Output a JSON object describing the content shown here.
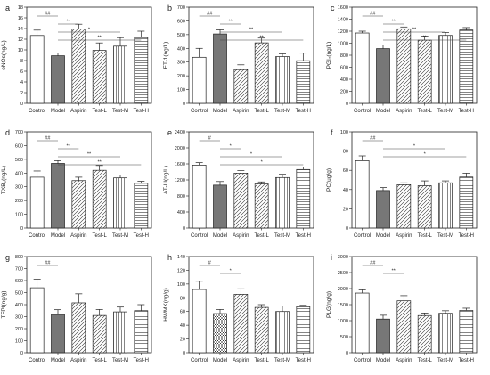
{
  "categories": [
    "Control",
    "Model",
    "Aspirin",
    "Test-L",
    "Test-M",
    "Test-H"
  ],
  "chart_data": [
    {
      "type": "bar",
      "panel_label": "a",
      "ylabel": "eNOs(ng/L)",
      "ylim": [
        0,
        18
      ],
      "yticks": [
        0,
        2,
        4,
        6,
        8,
        10,
        12,
        14,
        16,
        18
      ],
      "values": [
        12.7,
        8.9,
        13.9,
        9.9,
        10.7,
        12.3
      ],
      "errors": [
        1.0,
        0.5,
        0.9,
        1.4,
        1.6,
        1.2
      ],
      "sig": [
        {
          "from": 0,
          "to": 1,
          "label": "##"
        },
        {
          "from": 1,
          "to": 2,
          "label": "**"
        },
        {
          "from": 1,
          "to": 4,
          "label": "*"
        },
        {
          "from": 1,
          "to": 5,
          "label": "**"
        }
      ]
    },
    {
      "type": "bar",
      "panel_label": "b",
      "ylabel": "ET-1(ng/L)",
      "ylim": [
        0,
        700
      ],
      "yticks": [
        0,
        100,
        200,
        300,
        400,
        500,
        600,
        700
      ],
      "values": [
        335,
        505,
        245,
        440,
        340,
        310
      ],
      "errors": [
        65,
        30,
        35,
        35,
        20,
        55
      ],
      "sig": [
        {
          "from": 0,
          "to": 1,
          "label": "##"
        },
        {
          "from": 1,
          "to": 2,
          "label": "**"
        },
        {
          "from": 1,
          "to": 4,
          "label": "**"
        },
        {
          "from": 1,
          "to": 5,
          "label": "**"
        }
      ]
    },
    {
      "type": "bar",
      "panel_label": "c",
      "ylabel": "PGI₂(ng/L)",
      "ylim": [
        0,
        1600
      ],
      "yticks": [
        0,
        200,
        400,
        600,
        800,
        1000,
        1200,
        1400,
        1600
      ],
      "values": [
        1170,
        910,
        1240,
        1050,
        1130,
        1220
      ],
      "errors": [
        30,
        60,
        30,
        70,
        50,
        40
      ],
      "sig": [
        {
          "from": 0,
          "to": 1,
          "label": "##"
        },
        {
          "from": 1,
          "to": 2,
          "label": "**"
        },
        {
          "from": 1,
          "to": 4,
          "label": "**"
        },
        {
          "from": 1,
          "to": 5,
          "label": "**"
        }
      ]
    },
    {
      "type": "bar",
      "panel_label": "d",
      "ylabel": "TXB₂(ng/L)",
      "ylim": [
        0,
        700
      ],
      "yticks": [
        0,
        100,
        200,
        300,
        400,
        500,
        600,
        700
      ],
      "values": [
        370,
        470,
        345,
        420,
        365,
        325
      ],
      "errors": [
        45,
        20,
        25,
        35,
        20,
        15
      ],
      "sig": [
        {
          "from": 0,
          "to": 1,
          "label": "##"
        },
        {
          "from": 1,
          "to": 2,
          "label": "**"
        },
        {
          "from": 1,
          "to": 4,
          "label": "**"
        },
        {
          "from": 1,
          "to": 5,
          "label": "**"
        }
      ]
    },
    {
      "type": "bar",
      "panel_label": "e",
      "ylabel": "AT-III(ng/L)",
      "ylim": [
        0,
        2400
      ],
      "yticks": [
        0,
        400,
        800,
        1200,
        1600,
        2000,
        2400
      ],
      "values": [
        1570,
        1070,
        1370,
        1100,
        1260,
        1460
      ],
      "errors": [
        60,
        90,
        60,
        50,
        80,
        60
      ],
      "sig": [
        {
          "from": 0,
          "to": 1,
          "label": "#"
        },
        {
          "from": 1,
          "to": 2,
          "label": "*"
        },
        {
          "from": 1,
          "to": 4,
          "label": "*"
        },
        {
          "from": 1,
          "to": 5,
          "label": "*"
        }
      ]
    },
    {
      "type": "bar",
      "panel_label": "f",
      "ylabel": "PC(ug/g)",
      "ylim": [
        0,
        100
      ],
      "yticks": [
        0,
        20,
        40,
        60,
        80,
        100
      ],
      "values": [
        70,
        39,
        45,
        44,
        47,
        53
      ],
      "errors": [
        5,
        3,
        2,
        5,
        2,
        4
      ],
      "sig": [
        {
          "from": 0,
          "to": 1,
          "label": "##"
        },
        {
          "from": 1,
          "to": 4,
          "label": "*"
        },
        {
          "from": 1,
          "to": 5,
          "label": "*"
        }
      ]
    },
    {
      "type": "bar",
      "panel_label": "g",
      "ylabel": "TFPI(ng/g)",
      "ylim": [
        0,
        800
      ],
      "yticks": [
        0,
        100,
        200,
        300,
        400,
        500,
        600,
        700,
        800
      ],
      "values": [
        540,
        318,
        415,
        310,
        340,
        350
      ],
      "errors": [
        70,
        40,
        75,
        50,
        40,
        50
      ],
      "sig": [
        {
          "from": 0,
          "to": 1,
          "label": "##"
        }
      ]
    },
    {
      "type": "bar",
      "panel_label": "h",
      "ylabel": "HWMK(ng/g)",
      "ylim": [
        0,
        140
      ],
      "yticks": [
        0,
        20,
        40,
        60,
        80,
        100,
        120,
        140
      ],
      "values": [
        92,
        57,
        85,
        66,
        60,
        67
      ],
      "errors": [
        12,
        6,
        8,
        4,
        8,
        2
      ],
      "sig": [
        {
          "from": 0,
          "to": 1,
          "label": "#"
        },
        {
          "from": 1,
          "to": 2,
          "label": "*"
        }
      ]
    },
    {
      "type": "bar",
      "panel_label": "i",
      "ylabel": "PLG(ng/g)",
      "ylim": [
        0,
        3000
      ],
      "yticks": [
        0,
        500,
        1000,
        1500,
        2000,
        2500,
        3000
      ],
      "values": [
        1860,
        1050,
        1620,
        1160,
        1230,
        1320
      ],
      "errors": [
        100,
        120,
        160,
        80,
        80,
        70
      ],
      "sig": [
        {
          "from": 0,
          "to": 1,
          "label": "##"
        },
        {
          "from": 1,
          "to": 2,
          "label": "**"
        }
      ]
    }
  ],
  "fills": [
    "#ffffff",
    "#777777",
    "diag",
    "diag",
    "vert",
    "horiz"
  ]
}
